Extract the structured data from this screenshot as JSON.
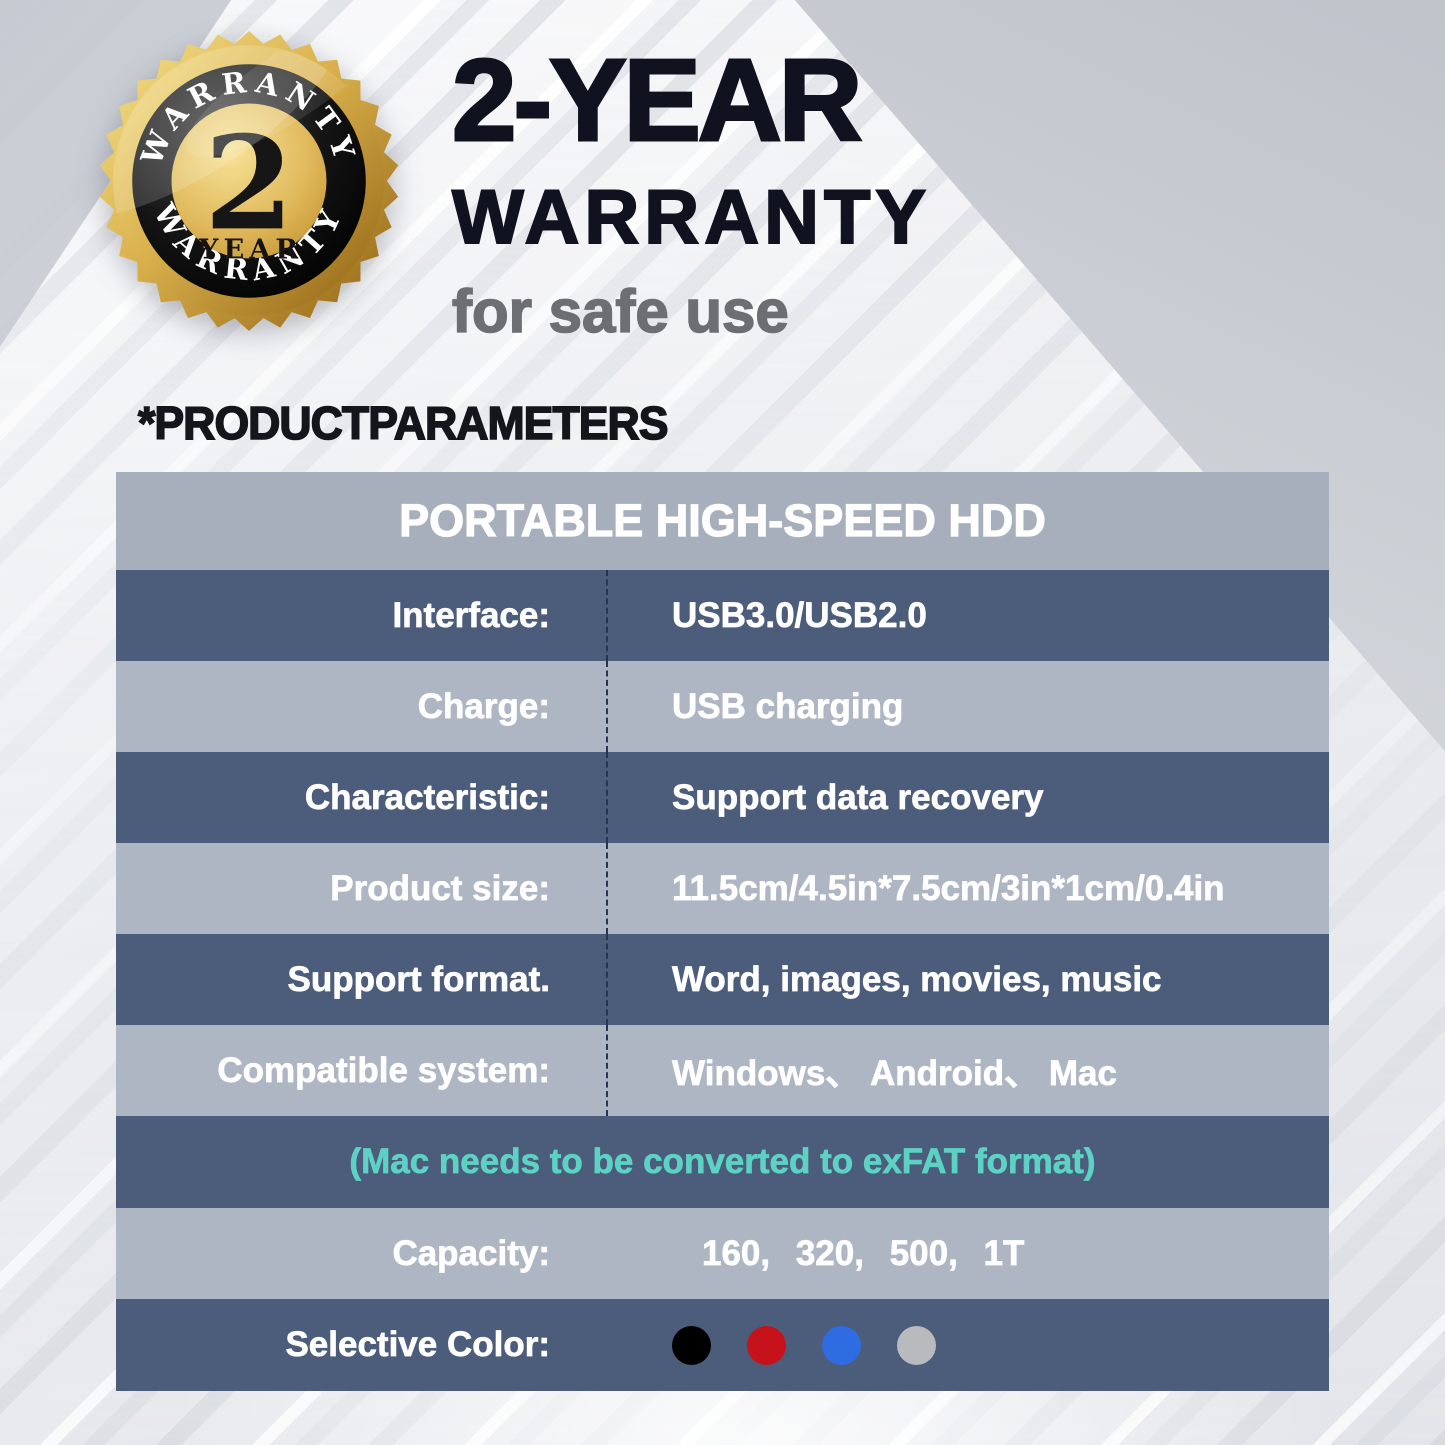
{
  "badge": {
    "arc_top_text": "WARRANTY",
    "arc_bottom_text": "WARRANTY",
    "number": "2",
    "unit": "YEAR"
  },
  "hero": {
    "title": "2-YEAR",
    "subtitle": "WARRANTY",
    "tagline": "for safe use"
  },
  "section_heading": "*PRODUCTPARAMETERS",
  "table": {
    "header": "PORTABLE HIGH-SPEED HDD",
    "rows": [
      {
        "label": "Interface:",
        "value": "USB3.0/USB2.0"
      },
      {
        "label": "Charge:",
        "value": "USB charging"
      },
      {
        "label": "Characteristic:",
        "value": "Support data recovery"
      },
      {
        "label": "Product size:",
        "value": "11.5cm/4.5in*7.5cm/3in*1cm/0.4in"
      },
      {
        "label": "Support format.",
        "value": "Word, images, movies, music"
      },
      {
        "label": "Compatible system:",
        "value": "Windows、 Android、 Mac"
      }
    ],
    "note": "(Mac needs to be converted to exFAT format)",
    "capacity": {
      "label": "Capacity:",
      "value": "160, 320, 500, 1T"
    },
    "colors_row": {
      "label": "Selective Color:",
      "dots": [
        "#000000",
        "#c6121a",
        "#2e6ce2",
        "#b9babd"
      ],
      "dot_names": [
        "black",
        "red",
        "blue",
        "silver"
      ]
    }
  },
  "colors": {
    "row_dark": "#4c5d7b",
    "row_light": "#aeb5c3",
    "header_band": "#a7aebc",
    "note_teal": "#5dd2c4",
    "divider": "#27364f",
    "gold": "#d4a743",
    "title_text": "#10131f",
    "tagline_gray": "#6c6e71"
  }
}
